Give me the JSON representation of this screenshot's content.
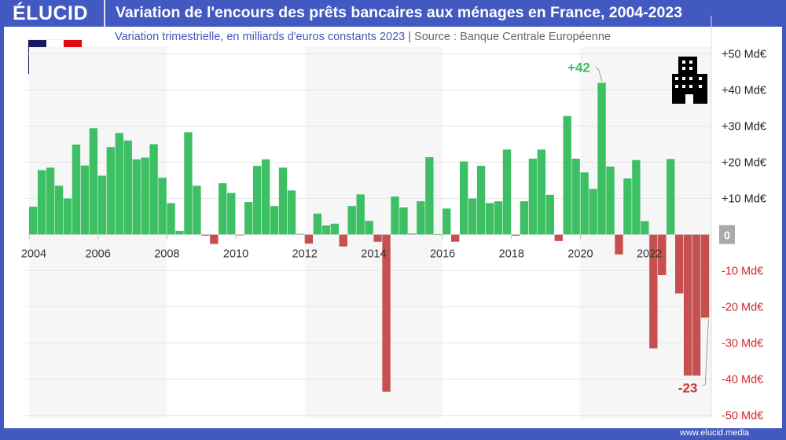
{
  "header": {
    "logo": "ÉLUCID",
    "title": "Variation de l'encours des prêts bancaires aux ménages en France, 2004-2023"
  },
  "subtitle": {
    "main": "Variation trimestrielle, en milliards d'euros constants 2023",
    "separator": "|",
    "source": "Source : Banque Centrale Européenne"
  },
  "footer": {
    "url": "www.elucid.media"
  },
  "icons": {
    "flag": "france-flag-icon",
    "building": "building-icon"
  },
  "colors": {
    "brand": "#4259c1",
    "positive": "#3dbf63",
    "negative": "#c64f50",
    "flag_blue": "#1b1a5e",
    "flag_red": "#e00a16"
  },
  "chart_data": {
    "type": "bar",
    "title": "Variation de l'encours des prêts bancaires aux ménages en France, 2004-2023",
    "xlabel": "",
    "ylabel": "Md€",
    "ylim": [
      -50,
      50
    ],
    "start": "2004-Q1",
    "frequency": "quarterly",
    "x_ticks": [
      "2004",
      "2006",
      "2008",
      "2010",
      "2012",
      "2014",
      "2016",
      "2018",
      "2020",
      "2022"
    ],
    "y_ticks": [
      {
        "value": 50,
        "label": "+50 Md€"
      },
      {
        "value": 40,
        "label": "+40 Md€"
      },
      {
        "value": 30,
        "label": "+30 Md€"
      },
      {
        "value": 20,
        "label": "+20 Md€"
      },
      {
        "value": 10,
        "label": "+10 Md€"
      },
      {
        "value": 0,
        "label": "0"
      },
      {
        "value": -10,
        "label": "-10 Md€"
      },
      {
        "value": -20,
        "label": "-20 Md€"
      },
      {
        "value": -30,
        "label": "-30 Md€"
      },
      {
        "value": -40,
        "label": "-40 Md€"
      },
      {
        "value": -50,
        "label": "-50 Md€"
      }
    ],
    "values": [
      7.7,
      17.8,
      18.5,
      13.5,
      10,
      24.9,
      19.1,
      29.4,
      16.3,
      24.2,
      28.1,
      26,
      20.8,
      21.3,
      25,
      15.7,
      8.7,
      1,
      28.3,
      13.5,
      -0.3,
      -2.6,
      14.2,
      11.5,
      -0.2,
      9,
      19,
      20.8,
      7.9,
      18.5,
      12.2,
      0.2,
      -2.5,
      5.8,
      2.5,
      3,
      -3.3,
      7.9,
      11.1,
      3.8,
      -2,
      -43.5,
      10.5,
      7.5,
      0.3,
      9.2,
      21.4,
      0.1,
      7.2,
      -2,
      20.2,
      10,
      19,
      8.7,
      9.2,
      23.5,
      -0.3,
      9.2,
      21,
      23.5,
      11,
      -1.8,
      32.8,
      21,
      17.2,
      12.6,
      42,
      18.8,
      -5.5,
      15.5,
      20.6,
      3.7,
      -31.5,
      -11.2,
      20.9,
      -16.3,
      -39,
      -39,
      -23
    ],
    "annotations": [
      {
        "index": 66,
        "label": "+42"
      },
      {
        "index": 78,
        "label": "-23"
      }
    ],
    "grid": true
  }
}
